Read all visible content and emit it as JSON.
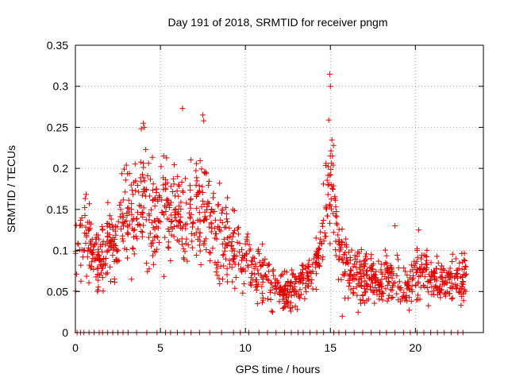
{
  "chart_data": {
    "type": "scatter",
    "title": "Day 191 of 2018, SRMTID for receiver pngm",
    "xlabel": "GPS time / hours",
    "ylabel": "SRMTID / TECUs",
    "xlim": [
      0,
      24
    ],
    "ylim": [
      0,
      0.35
    ],
    "xticks": [
      0,
      5,
      10,
      15,
      20
    ],
    "yticks": [
      0,
      0.05,
      0.1,
      0.15,
      0.2,
      0.25,
      0.3,
      0.35
    ],
    "xtick_labels": [
      "0",
      "5",
      "10",
      "15",
      "20"
    ],
    "ytick_labels": [
      "0",
      "0.05",
      "0.1",
      "0.15",
      "0.2",
      "0.25",
      "0.3",
      "0.35"
    ],
    "grid": true,
    "marker": "+",
    "series_color": "#e00000",
    "trend": [
      {
        "x": 0.0,
        "y": 0.1
      },
      {
        "x": 0.5,
        "y": 0.11
      },
      {
        "x": 1.0,
        "y": 0.1
      },
      {
        "x": 1.3,
        "y": 0.08
      },
      {
        "x": 1.8,
        "y": 0.11
      },
      {
        "x": 2.3,
        "y": 0.1
      },
      {
        "x": 2.8,
        "y": 0.14
      },
      {
        "x": 3.5,
        "y": 0.15
      },
      {
        "x": 4.0,
        "y": 0.17
      },
      {
        "x": 4.5,
        "y": 0.14
      },
      {
        "x": 5.0,
        "y": 0.16
      },
      {
        "x": 5.5,
        "y": 0.14
      },
      {
        "x": 6.0,
        "y": 0.15
      },
      {
        "x": 6.5,
        "y": 0.13
      },
      {
        "x": 7.0,
        "y": 0.15
      },
      {
        "x": 7.5,
        "y": 0.16
      },
      {
        "x": 8.0,
        "y": 0.12
      },
      {
        "x": 8.5,
        "y": 0.11
      },
      {
        "x": 9.0,
        "y": 0.11
      },
      {
        "x": 9.5,
        "y": 0.1
      },
      {
        "x": 10.0,
        "y": 0.09
      },
      {
        "x": 10.5,
        "y": 0.07
      },
      {
        "x": 11.0,
        "y": 0.07
      },
      {
        "x": 11.5,
        "y": 0.06
      },
      {
        "x": 12.0,
        "y": 0.05
      },
      {
        "x": 12.5,
        "y": 0.05
      },
      {
        "x": 13.0,
        "y": 0.055
      },
      {
        "x": 13.5,
        "y": 0.065
      },
      {
        "x": 14.0,
        "y": 0.075
      },
      {
        "x": 14.5,
        "y": 0.1
      },
      {
        "x": 14.8,
        "y": 0.17
      },
      {
        "x": 15.0,
        "y": 0.21
      },
      {
        "x": 15.3,
        "y": 0.13
      },
      {
        "x": 15.7,
        "y": 0.1
      },
      {
        "x": 16.0,
        "y": 0.08
      },
      {
        "x": 16.5,
        "y": 0.07
      },
      {
        "x": 17.0,
        "y": 0.07
      },
      {
        "x": 17.5,
        "y": 0.065
      },
      {
        "x": 18.0,
        "y": 0.06
      },
      {
        "x": 18.5,
        "y": 0.075
      },
      {
        "x": 19.0,
        "y": 0.06
      },
      {
        "x": 19.5,
        "y": 0.055
      },
      {
        "x": 20.0,
        "y": 0.07
      },
      {
        "x": 20.5,
        "y": 0.075
      },
      {
        "x": 21.0,
        "y": 0.065
      },
      {
        "x": 21.5,
        "y": 0.06
      },
      {
        "x": 22.0,
        "y": 0.07
      },
      {
        "x": 22.5,
        "y": 0.065
      },
      {
        "x": 23.0,
        "y": 0.065
      }
    ],
    "highlights": [
      {
        "x": 15.0,
        "y": 0.3
      },
      {
        "x": 6.3,
        "y": 0.273
      },
      {
        "x": 4.0,
        "y": 0.255
      },
      {
        "x": 4.05,
        "y": 0.25
      },
      {
        "x": 7.5,
        "y": 0.265
      },
      {
        "x": 7.55,
        "y": 0.258
      },
      {
        "x": 1.3,
        "y": 0.05
      },
      {
        "x": 11.6,
        "y": 0.025
      },
      {
        "x": 15.7,
        "y": 0.02
      },
      {
        "x": 18.8,
        "y": 0.13
      },
      {
        "x": 20.2,
        "y": 0.125
      }
    ],
    "zero_points_x": [
      0.1,
      0.3,
      0.5,
      0.8,
      1.1,
      1.4,
      1.6,
      1.9,
      2.2,
      2.5,
      2.8,
      3.1,
      3.6,
      4.2,
      4.8,
      5.3,
      5.6,
      6.0,
      6.4,
      6.8,
      7.3,
      7.9,
      8.6,
      9.3,
      9.7,
      10.2,
      10.8,
      11.3,
      11.8,
      12.3,
      12.7,
      13.1,
      13.4,
      13.8,
      14.2,
      14.6,
      15.2,
      15.5,
      15.9,
      16.4,
      16.9,
      17.4,
      17.9,
      18.3,
      18.8,
      19.3,
      19.7,
      20.1,
      20.5,
      20.9,
      21.3,
      21.7,
      22.1,
      22.5,
      22.8
    ],
    "dense_points": 1400,
    "random_seed": 191
  }
}
